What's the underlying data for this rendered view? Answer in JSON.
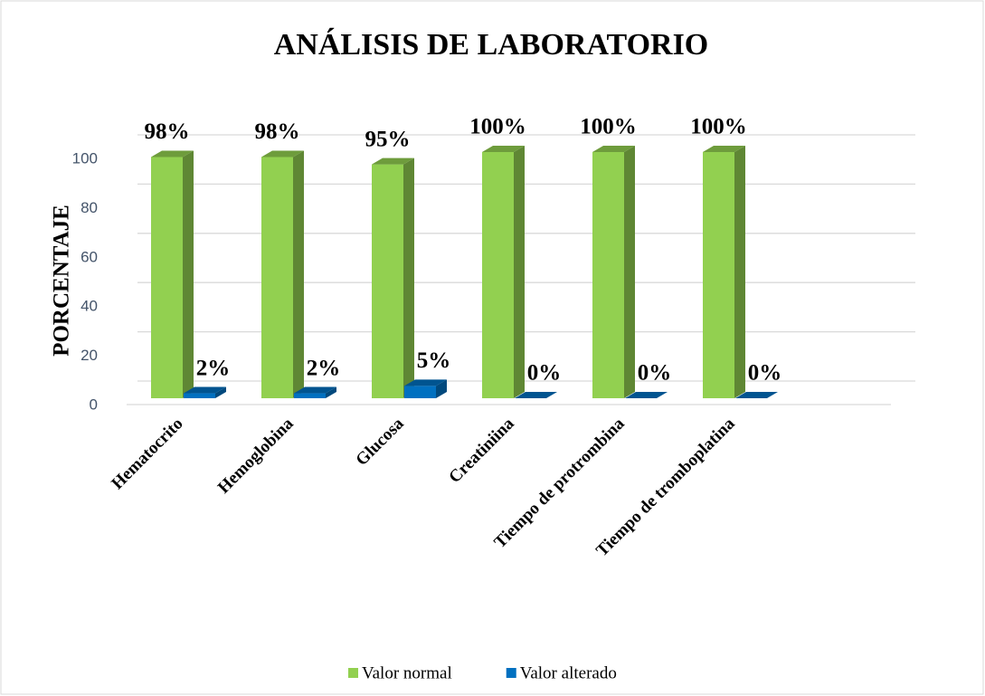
{
  "chart_data": {
    "type": "bar3d",
    "title": "ANÁLISIS DE LABORATORIO",
    "y_label": "PORCENTAJE",
    "categories": [
      "Hematocrito",
      "Hemoglobina",
      "Glucosa",
      "Creatiniina",
      "Tiempo de protrombina",
      "Tiempo de tromboplatina"
    ],
    "series": [
      {
        "name": "Valor normal",
        "color": "#92d050",
        "values": [
          98,
          98,
          95,
          100,
          100,
          100
        ],
        "value_labels": [
          "98%",
          "98%",
          "95%",
          "100%",
          "100%",
          "100%"
        ]
      },
      {
        "name": "Valor alterado",
        "color": "#0070c0",
        "values": [
          2,
          2,
          5,
          0,
          0,
          0
        ],
        "value_labels": [
          "2%",
          "2%",
          "5%",
          "0%",
          "0%",
          "0%"
        ]
      }
    ],
    "ylim": [
      0,
      100
    ],
    "yticks": [
      0,
      20,
      40,
      60,
      80,
      100
    ],
    "grid": true,
    "legend": "bottom"
  }
}
